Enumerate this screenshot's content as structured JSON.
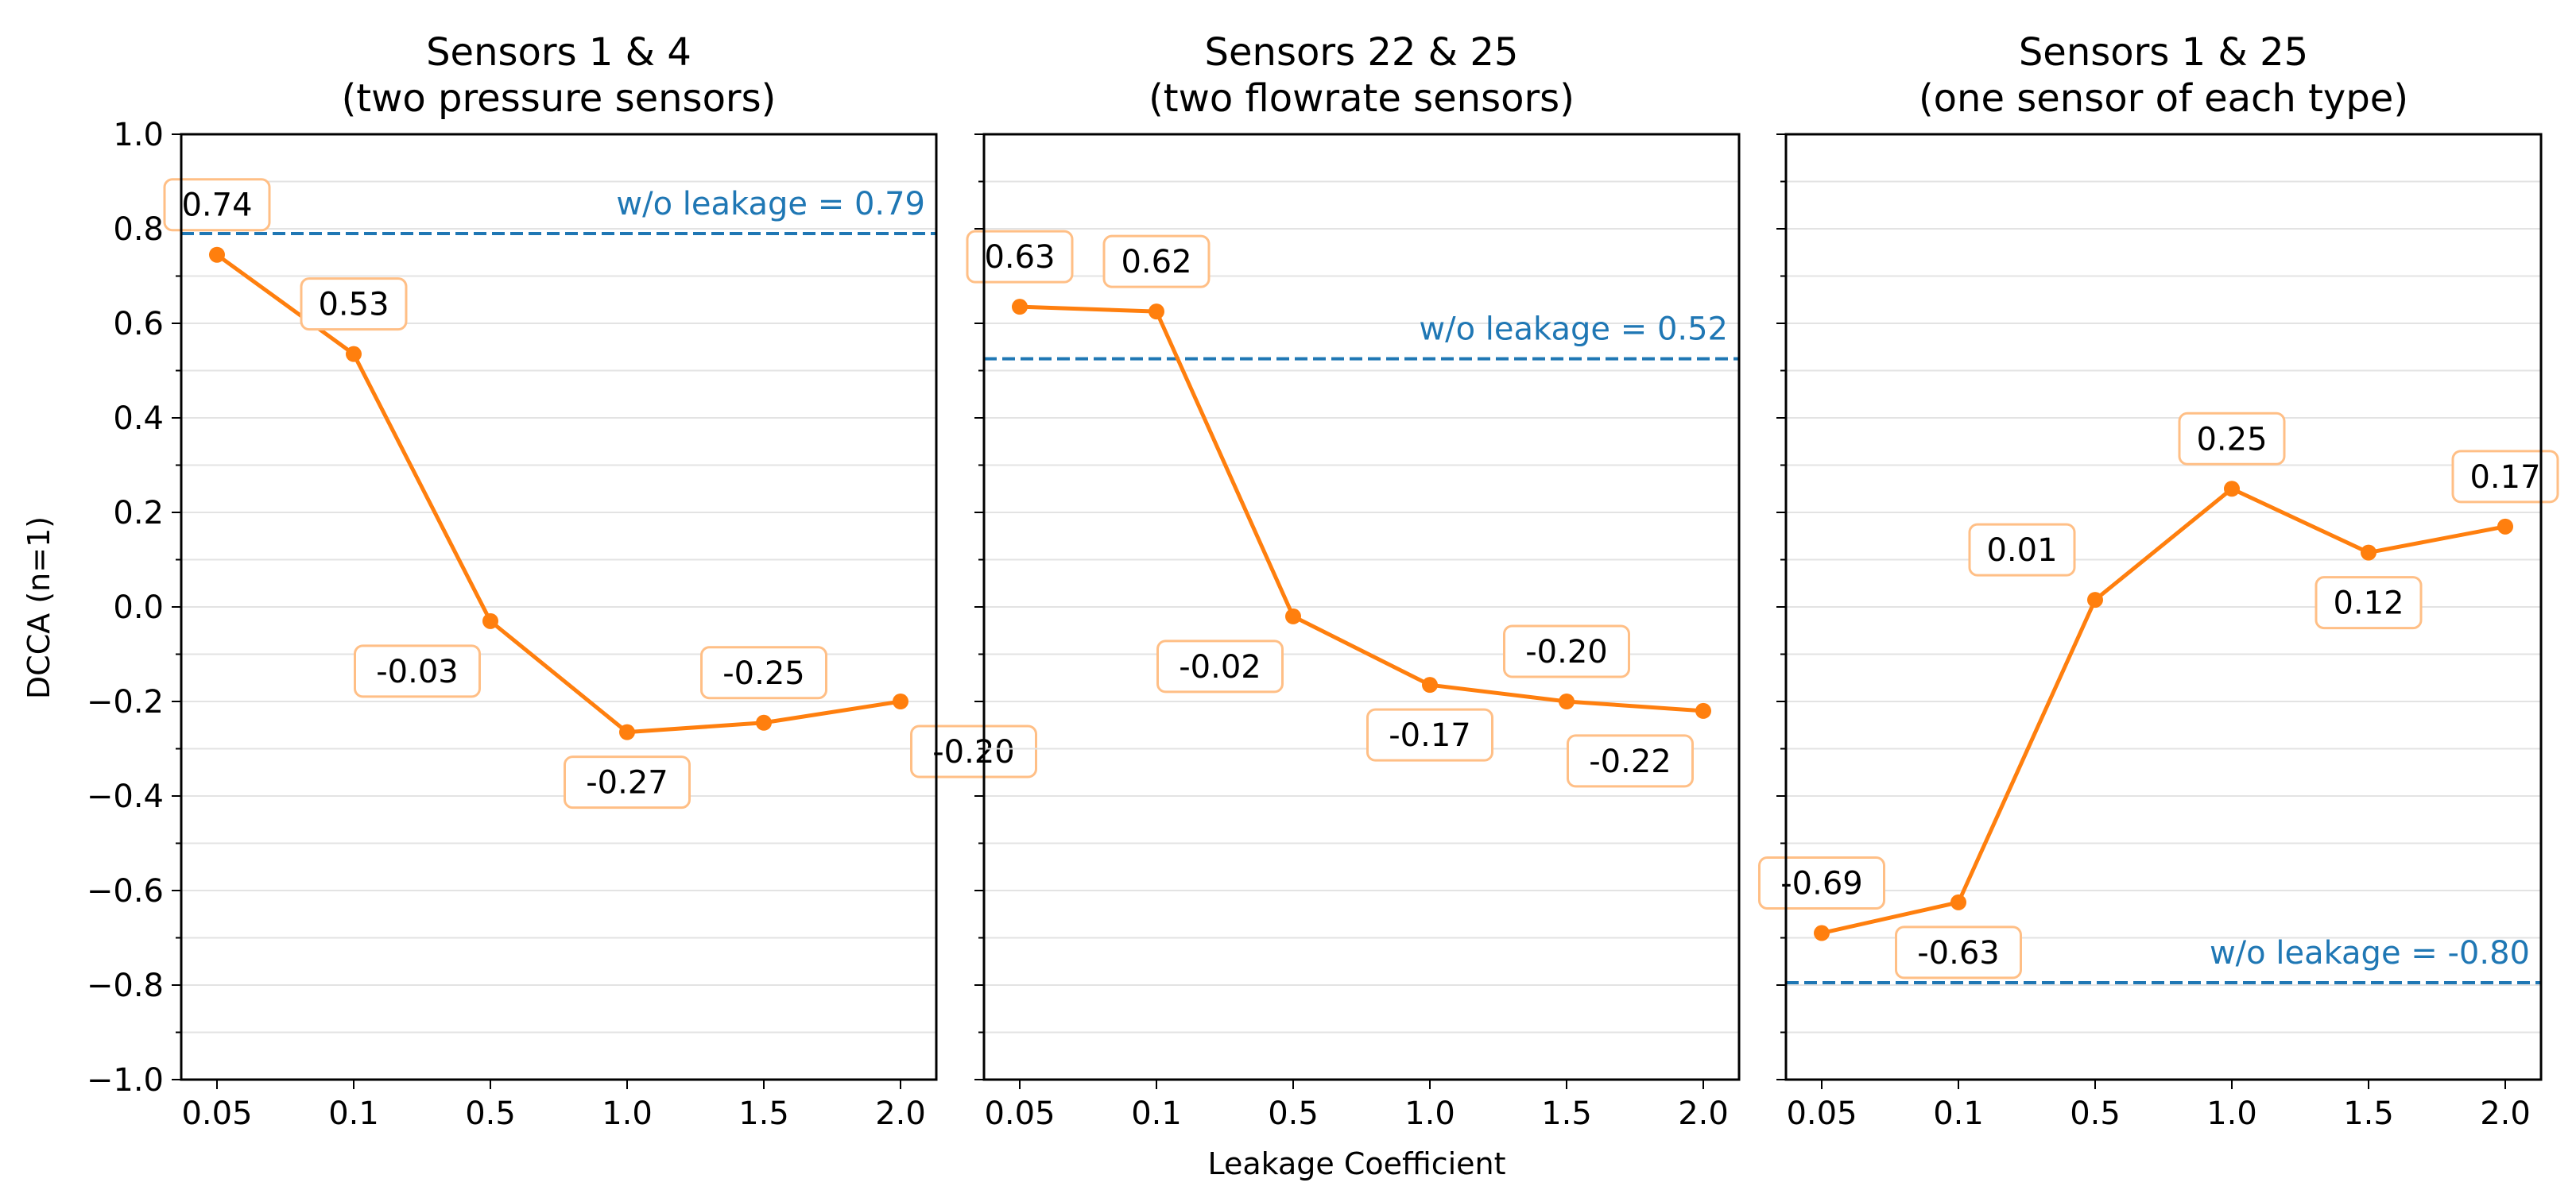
{
  "figure": {
    "ylabel": "DCCA (n=1)",
    "xlabel": "Leakage Coefficient"
  },
  "colors": {
    "series": "#ff7f0e",
    "baseline": "#1f77b4",
    "label_border": "#ffbf86",
    "grid": "#e3e3e3",
    "axis": "#000000"
  },
  "chart_data": [
    {
      "type": "line",
      "title_line1": "Sensors 1 & 4",
      "title_line2": "(two pressure sensors)",
      "categories": [
        "0.05",
        "0.1",
        "0.5",
        "1.0",
        "1.5",
        "2.0"
      ],
      "values": [
        0.745,
        0.535,
        -0.03,
        -0.265,
        -0.245,
        -0.2
      ],
      "value_labels": [
        "0.74",
        "0.53",
        "-0.03",
        "-0.27",
        "-0.25",
        "-0.20"
      ],
      "label_positions": [
        "above",
        "above",
        "below-left",
        "below",
        "above",
        "below-right"
      ],
      "baseline": {
        "value": 0.79,
        "label": "w/o leakage = 0.79",
        "label_pos": "above"
      },
      "ylim": [
        -1.0,
        1.0
      ],
      "yticks": [
        "1.0",
        "0.8",
        "0.6",
        "0.4",
        "0.2",
        "0.0",
        "−0.2",
        "−0.4",
        "−0.6",
        "−0.8",
        "−1.0"
      ],
      "show_ytick_labels": true
    },
    {
      "type": "line",
      "title_line1": "Sensors 22 & 25",
      "title_line2": "(two flowrate sensors)",
      "categories": [
        "0.05",
        "0.1",
        "0.5",
        "1.0",
        "1.5",
        "2.0"
      ],
      "values": [
        0.635,
        0.625,
        -0.02,
        -0.165,
        -0.2,
        -0.22
      ],
      "value_labels": [
        "0.63",
        "0.62",
        "-0.02",
        "-0.17",
        "-0.20",
        "-0.22"
      ],
      "label_positions": [
        "above",
        "above",
        "below-left",
        "below",
        "above",
        "below-left"
      ],
      "baseline": {
        "value": 0.525,
        "label": "w/o leakage = 0.52",
        "label_pos": "above"
      },
      "ylim": [
        -1.0,
        1.0
      ],
      "yticks": [
        "1.0",
        "0.8",
        "0.6",
        "0.4",
        "0.2",
        "0.0",
        "−0.2",
        "−0.4",
        "−0.6",
        "−0.8",
        "−1.0"
      ],
      "show_ytick_labels": false
    },
    {
      "type": "line",
      "title_line1": "Sensors 1 & 25",
      "title_line2": "(one sensor of each type)",
      "categories": [
        "0.05",
        "0.1",
        "0.5",
        "1.0",
        "1.5",
        "2.0"
      ],
      "values": [
        -0.69,
        -0.625,
        0.015,
        0.25,
        0.115,
        0.17
      ],
      "value_labels": [
        "-0.69",
        "-0.63",
        "0.01",
        "0.25",
        "0.12",
        "0.17"
      ],
      "label_positions": [
        "above",
        "below",
        "above-left",
        "above",
        "below",
        "above"
      ],
      "baseline": {
        "value": -0.795,
        "label": "w/o leakage = -0.80",
        "label_pos": "above"
      },
      "ylim": [
        -1.0,
        1.0
      ],
      "yticks": [
        "1.0",
        "0.8",
        "0.6",
        "0.4",
        "0.2",
        "0.0",
        "−0.2",
        "−0.4",
        "−0.6",
        "−0.8",
        "−1.0"
      ],
      "show_ytick_labels": false
    }
  ]
}
